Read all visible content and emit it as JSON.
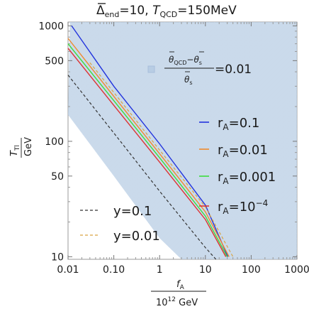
{
  "chart_data": {
    "type": "line",
    "title_main": "Δ",
    "title_sub": "end",
    "title_rest": "=10, ",
    "title_T": "T",
    "title_T_sub": "QCD",
    "title_T_val": "=150MeV",
    "x_axis": {
      "scale": "log",
      "range": [
        0.01,
        1000
      ],
      "tick_labels": [
        "0.01",
        "0.10",
        "1",
        "10",
        "100",
        "1000"
      ],
      "tick_values": [
        0.01,
        0.1,
        1,
        10,
        100,
        1000
      ],
      "label_num": "f",
      "label_num_sub": "A",
      "label_den": "10",
      "label_den_sup": "12",
      "label_den_unit": " GeV"
    },
    "y_axis": {
      "scale": "log",
      "range": [
        9.5,
        1080
      ],
      "tick_labels": [
        "10",
        "50",
        "100",
        "500",
        "1000"
      ],
      "tick_values": [
        10,
        50,
        100,
        500,
        1000
      ],
      "label_num": "T",
      "label_num_sub": "Tl",
      "label_den": "GeV"
    },
    "region": {
      "color": "#b8cde4",
      "legend_num_a": "θ",
      "legend_num_a_sub": "QCD",
      "legend_num_mid": "−",
      "legend_num_b": "θ",
      "legend_num_b_sub": "s",
      "legend_den": "θ",
      "legend_den_sub": "s",
      "legend_value": "=0.01",
      "boundary_upper_left": [
        [
          0.011,
          1000
        ],
        [
          1000,
          1000
        ]
      ],
      "boundary_lower_left": [
        [
          0.01,
          170
        ],
        [
          0.1,
          50
        ],
        [
          1,
          14.5
        ],
        [
          3,
          9.5
        ]
      ]
    },
    "series": [
      {
        "name": "r",
        "name_sub": "A",
        "name_val": "=0.1",
        "color": "#2233dd",
        "dash": false,
        "points": [
          [
            0.012,
            1000
          ],
          [
            0.1,
            300
          ],
          [
            1,
            95
          ],
          [
            10,
            28
          ],
          [
            31,
            10
          ]
        ]
      },
      {
        "name": "r",
        "name_sub": "A",
        "name_val": "=0.01",
        "color": "#f08a2c",
        "dash": false,
        "points": [
          [
            0.01,
            780
          ],
          [
            0.1,
            245
          ],
          [
            1,
            78
          ],
          [
            10,
            24.5
          ],
          [
            33,
            10
          ]
        ]
      },
      {
        "name": "r",
        "name_sub": "A",
        "name_val": "=0.001",
        "color": "#3ddc3d",
        "dash": false,
        "points": [
          [
            0.01,
            700
          ],
          [
            0.1,
            225
          ],
          [
            1,
            72
          ],
          [
            10,
            22.5
          ],
          [
            30,
            10
          ]
        ]
      },
      {
        "name": "r",
        "name_sub": "A",
        "name_val": "=10",
        "name_sup": "−4",
        "color": "#dd3333",
        "dash": false,
        "points": [
          [
            0.01,
            640
          ],
          [
            0.1,
            205
          ],
          [
            1,
            66
          ],
          [
            10,
            21
          ],
          [
            28,
            10
          ]
        ]
      },
      {
        "name": "y=0.1",
        "color": "#333333",
        "dash": true,
        "points": [
          [
            0.01,
            375
          ],
          [
            0.1,
            118
          ],
          [
            1,
            37
          ],
          [
            10,
            12
          ],
          [
            17,
            9.5
          ]
        ]
      },
      {
        "name": "y=0.01",
        "color": "#d9a441",
        "dash": true,
        "points": [
          [
            0.03,
            480
          ],
          [
            0.1,
            265
          ],
          [
            1,
            84
          ],
          [
            10,
            27
          ],
          [
            40,
            10
          ]
        ]
      }
    ],
    "legend_placement": "right",
    "legend_dashed_placement": "bottom-left"
  }
}
